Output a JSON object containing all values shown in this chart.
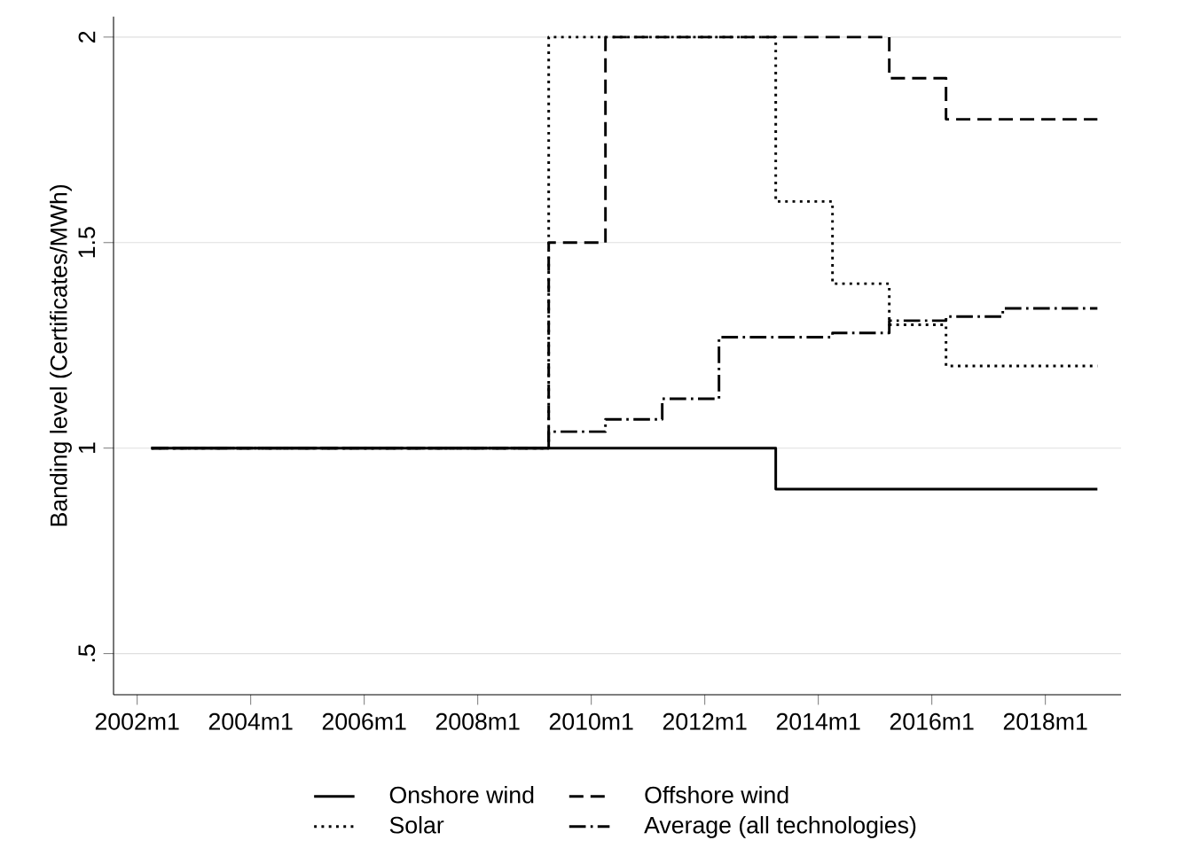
{
  "chart_data": {
    "type": "step",
    "ylabel": "Banding level (Certificates/MWh)",
    "xlim": [
      "2001-08",
      "2019-05"
    ],
    "ylim": [
      0.4,
      2.05
    ],
    "xticks": [
      {
        "value": "2002-01",
        "label": "2002m1"
      },
      {
        "value": "2004-01",
        "label": "2004m1"
      },
      {
        "value": "2006-01",
        "label": "2006m1"
      },
      {
        "value": "2008-01",
        "label": "2008m1"
      },
      {
        "value": "2010-01",
        "label": "2010m1"
      },
      {
        "value": "2012-01",
        "label": "2012m1"
      },
      {
        "value": "2014-01",
        "label": "2014m1"
      },
      {
        "value": "2016-01",
        "label": "2016m1"
      },
      {
        "value": "2018-01",
        "label": "2018m1"
      }
    ],
    "yticks": [
      {
        "value": 0.5,
        "label": ".5"
      },
      1,
      1.5,
      2
    ],
    "grid": "y",
    "legend": "bottom",
    "marker": "none",
    "series": [
      {
        "name": "Onshore wind",
        "color": "#000000",
        "line_style": "solid",
        "x": [
          "2002-04",
          "2013-04",
          "2018-12"
        ],
        "values": [
          1,
          0.9,
          0.9
        ]
      },
      {
        "name": "Offshore wind",
        "color": "#000000",
        "line_style": "dashed",
        "x": [
          "2002-04",
          "2009-04",
          "2010-04",
          "2015-04",
          "2016-04",
          "2018-12"
        ],
        "values": [
          1,
          1.5,
          2,
          1.9,
          1.8,
          1.8
        ]
      },
      {
        "name": "Solar",
        "color": "#000000",
        "line_style": "dotted",
        "x": [
          "2002-04",
          "2009-04",
          "2013-04",
          "2014-04",
          "2015-04",
          "2016-04",
          "2018-12"
        ],
        "values": [
          1,
          2,
          1.6,
          1.4,
          1.3,
          1.2,
          1.2
        ]
      },
      {
        "name": "Average (all technologies)",
        "color": "#000000",
        "line_style": "dashdot",
        "x": [
          "2002-04",
          "2009-04",
          "2010-04",
          "2011-04",
          "2012-04",
          "2014-04",
          "2015-04",
          "2016-04",
          "2017-04",
          "2018-12"
        ],
        "values": [
          1,
          1.04,
          1.07,
          1.12,
          1.27,
          1.28,
          1.31,
          1.32,
          1.34,
          1.34
        ]
      }
    ]
  }
}
